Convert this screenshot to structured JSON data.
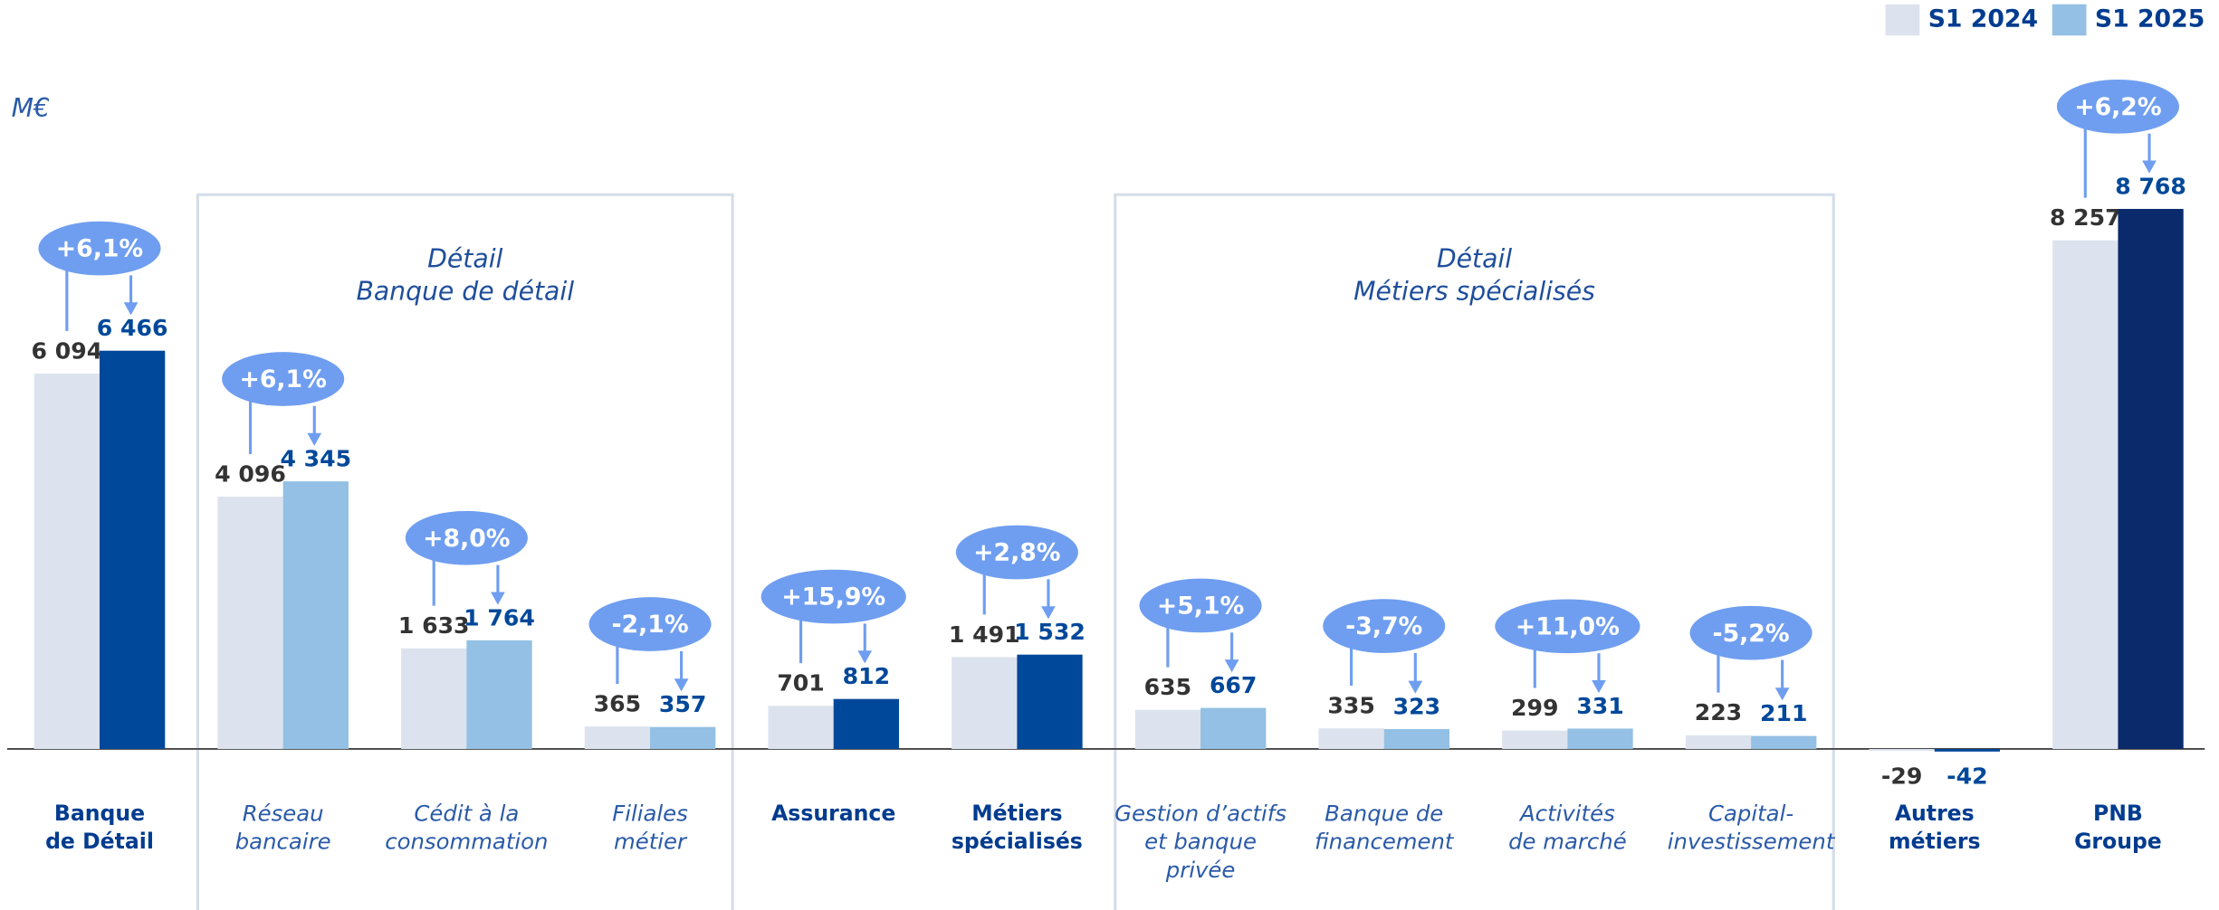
{
  "chart_data": {
    "type": "bar",
    "unit": "M€",
    "categories": [
      [
        "Banque",
        "de Détail"
      ],
      [
        "Réseau",
        "bancaire"
      ],
      [
        "Cédit à la",
        "consommation"
      ],
      [
        "Filiales",
        "métier"
      ],
      [
        "Assurance"
      ],
      [
        "Métiers",
        "spécialisés"
      ],
      [
        "Gestion d’actifs",
        "et banque",
        "privée"
      ],
      [
        "Banque de",
        "financement"
      ],
      [
        "Activités",
        "de marché"
      ],
      [
        "Capital-",
        "investissement"
      ],
      [
        "Autres",
        "métiers"
      ],
      [
        "PNB",
        "Groupe"
      ]
    ],
    "series": [
      {
        "name": "S1 2024",
        "color": "#dde3ee",
        "values": [
          6094,
          4096,
          1633,
          365,
          701,
          1491,
          635,
          335,
          299,
          223,
          -29,
          8257
        ],
        "value_labels": [
          "6 094",
          "4 096",
          "1 633",
          "365",
          "701",
          "1 491",
          "635",
          "335",
          "299",
          "223",
          "-29",
          "8 257"
        ]
      },
      {
        "name": "S1 2025",
        "color": "#93c0e4",
        "colors": [
          "#00489a",
          "#93c0e4",
          "#93c0e4",
          "#93c0e4",
          "#00489a",
          "#00489a",
          "#93c0e4",
          "#93c0e4",
          "#93c0e4",
          "#93c0e4",
          "#00489a",
          "#0b2a6b"
        ],
        "values": [
          6466,
          4345,
          1764,
          357,
          812,
          1532,
          667,
          323,
          331,
          211,
          -42,
          8768
        ],
        "value_labels": [
          "6 466",
          "4 345",
          "1 764",
          "357",
          "812",
          "1 532",
          "667",
          "323",
          "331",
          "211",
          "-42",
          "8 768"
        ]
      }
    ],
    "changes": [
      "+6,1%",
      "+6,1%",
      "+8,0%",
      "-2,1%",
      "+15,9%",
      "+2,8%",
      "+5,1%",
      "-3,7%",
      "+11,0%",
      "-5,2%",
      null,
      "+6,2%"
    ],
    "detail_groups": [
      {
        "title": [
          "Détail",
          "Banque de détail"
        ],
        "categories": [
          1,
          2,
          3
        ]
      },
      {
        "title": [
          "Détail",
          "Métiers spécialisés"
        ],
        "categories": [
          6,
          7,
          8,
          9
        ]
      }
    ],
    "legend": "top-right"
  }
}
